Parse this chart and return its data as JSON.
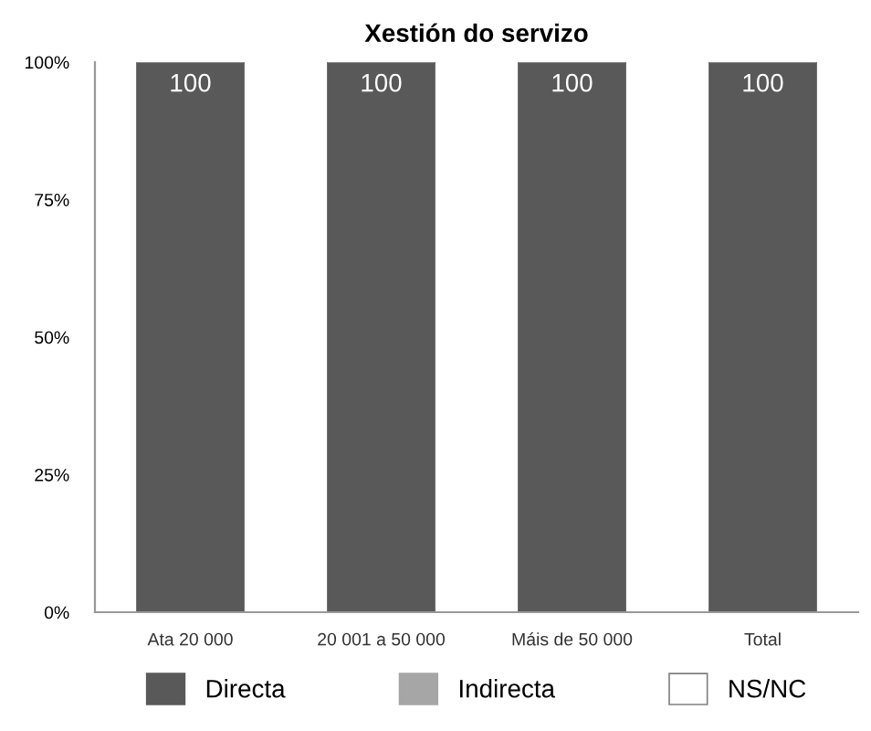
{
  "chart_data": {
    "type": "bar",
    "stacked": true,
    "title": "Xestión do servizo",
    "categories": [
      "Ata 20 000",
      "20 001 a 50 000",
      "Máis de 50 000",
      "Total"
    ],
    "series": [
      {
        "name": "Directa",
        "color": "#595959",
        "values": [
          100,
          100,
          100,
          100
        ],
        "value_labels": [
          "100",
          "100",
          "100",
          "100"
        ]
      },
      {
        "name": "Indirecta",
        "color": "#a6a6a6",
        "values": [
          0,
          0,
          0,
          0
        ]
      },
      {
        "name": "NS/NC",
        "color": "#ffffff",
        "values": [
          0,
          0,
          0,
          0
        ]
      }
    ],
    "ylim": [
      0,
      100
    ],
    "yticks": [
      {
        "value": 0,
        "label": "0%"
      },
      {
        "value": 25,
        "label": "25%"
      },
      {
        "value": 50,
        "label": "50%"
      },
      {
        "value": 75,
        "label": "75%"
      },
      {
        "value": 100,
        "label": "100%"
      }
    ],
    "grid": false,
    "legend": "bottom"
  }
}
